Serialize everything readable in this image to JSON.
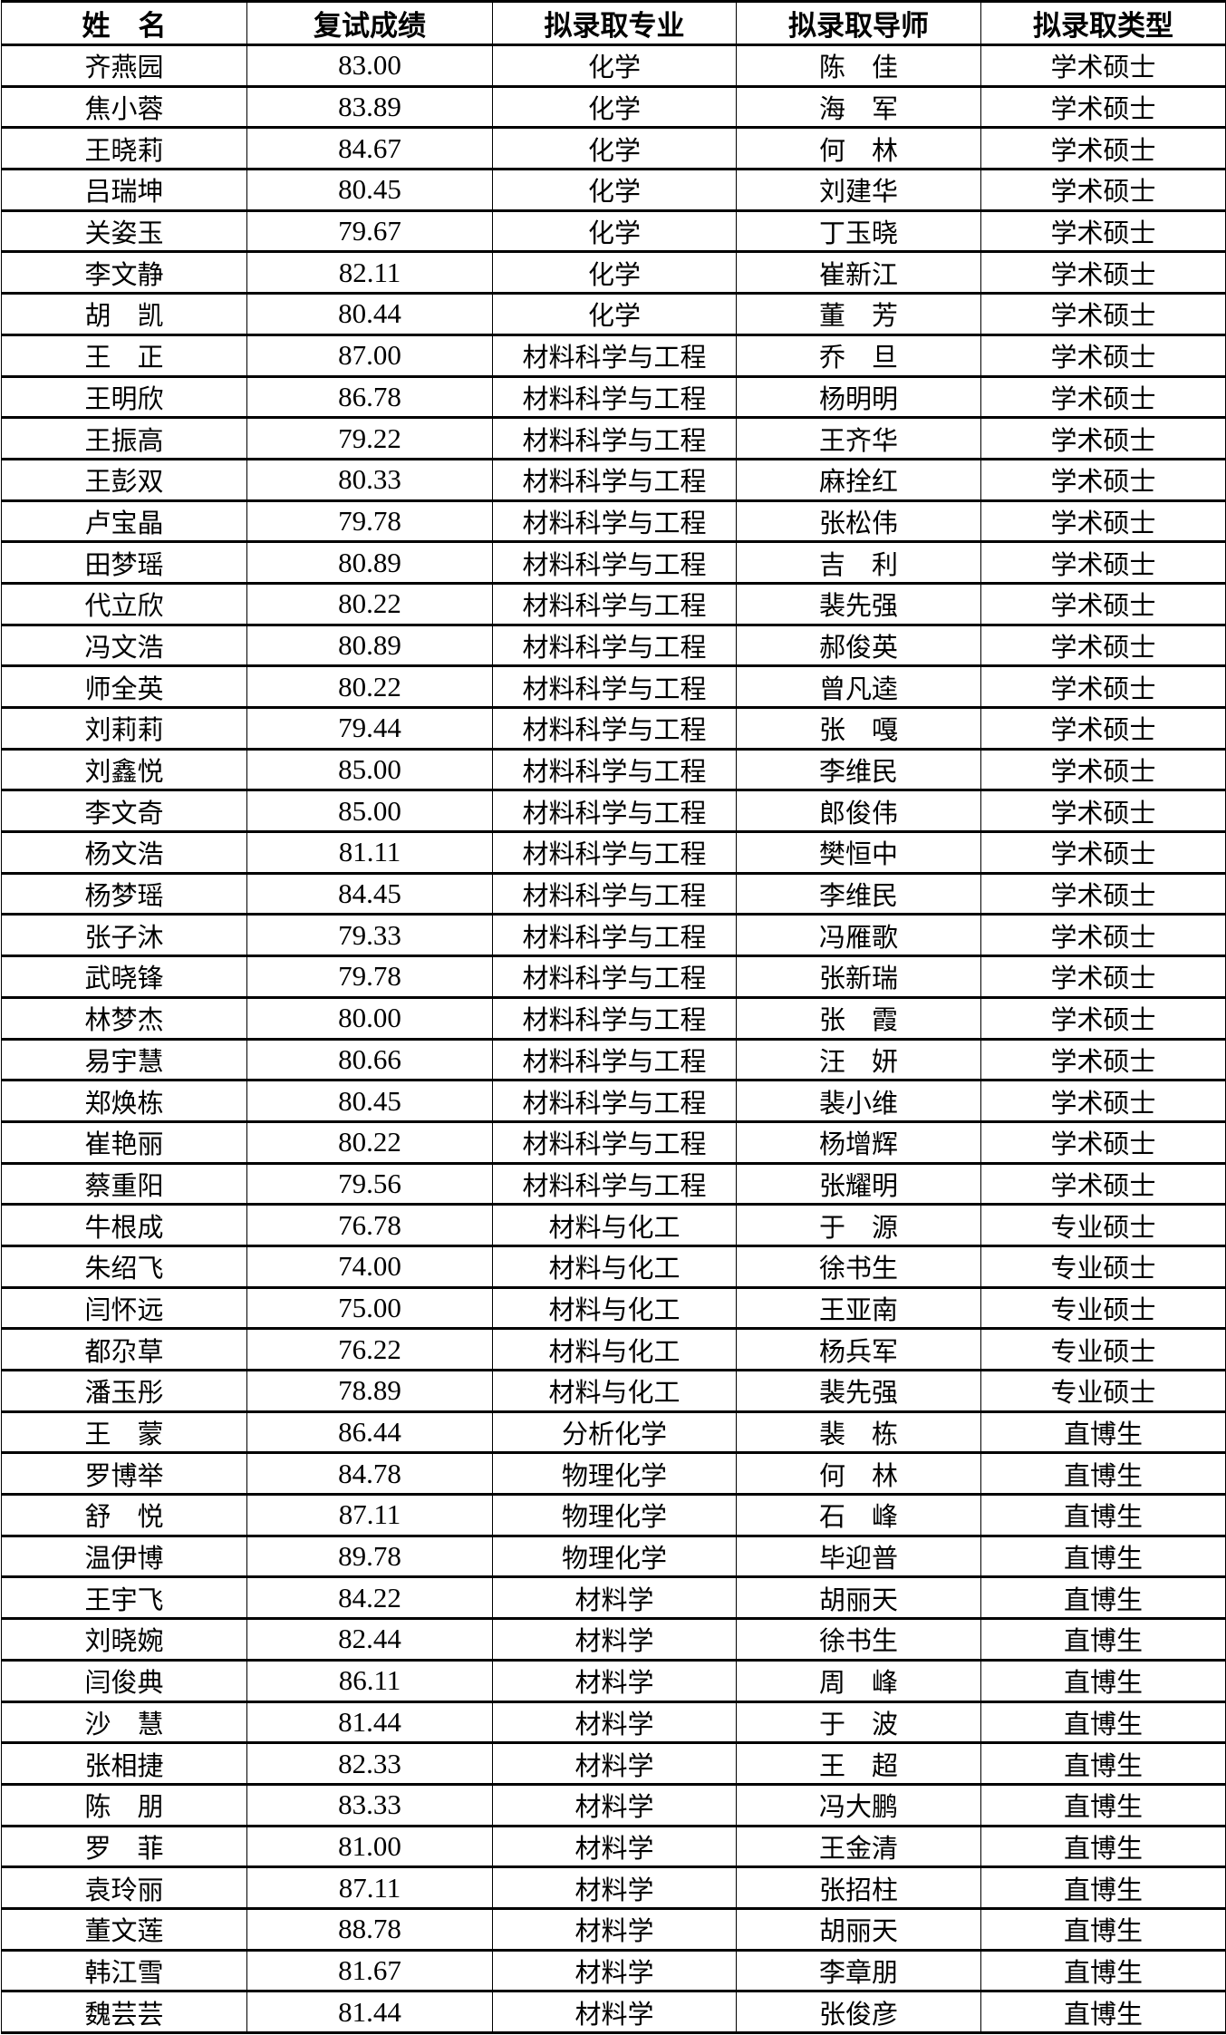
{
  "headers": [
    "姓　名",
    "复试成绩",
    "拟录取专业",
    "拟录取导师",
    "拟录取类型"
  ],
  "rows": [
    [
      "齐燕园",
      "83.00",
      "化学",
      "陈　佳",
      "学术硕士"
    ],
    [
      "焦小蓉",
      "83.89",
      "化学",
      "海　军",
      "学术硕士"
    ],
    [
      "王晓莉",
      "84.67",
      "化学",
      "何　林",
      "学术硕士"
    ],
    [
      "吕瑞坤",
      "80.45",
      "化学",
      "刘建华",
      "学术硕士"
    ],
    [
      "关姿玉",
      "79.67",
      "化学",
      "丁玉晓",
      "学术硕士"
    ],
    [
      "李文静",
      "82.11",
      "化学",
      "崔新江",
      "学术硕士"
    ],
    [
      "胡　凯",
      "80.44",
      "化学",
      "董　芳",
      "学术硕士"
    ],
    [
      "王　正",
      "87.00",
      "材料科学与工程",
      "乔　旦",
      "学术硕士"
    ],
    [
      "王明欣",
      "86.78",
      "材料科学与工程",
      "杨明明",
      "学术硕士"
    ],
    [
      "王振高",
      "79.22",
      "材料科学与工程",
      "王齐华",
      "学术硕士"
    ],
    [
      "王彭双",
      "80.33",
      "材料科学与工程",
      "麻拴红",
      "学术硕士"
    ],
    [
      "卢宝晶",
      "79.78",
      "材料科学与工程",
      "张松伟",
      "学术硕士"
    ],
    [
      "田梦瑶",
      "80.89",
      "材料科学与工程",
      "吉　利",
      "学术硕士"
    ],
    [
      "代立欣",
      "80.22",
      "材料科学与工程",
      "裴先强",
      "学术硕士"
    ],
    [
      "冯文浩",
      "80.89",
      "材料科学与工程",
      "郝俊英",
      "学术硕士"
    ],
    [
      "师全英",
      "80.22",
      "材料科学与工程",
      "曾凡逵",
      "学术硕士"
    ],
    [
      "刘莉莉",
      "79.44",
      "材料科学与工程",
      "张　嘎",
      "学术硕士"
    ],
    [
      "刘鑫悦",
      "85.00",
      "材料科学与工程",
      "李维民",
      "学术硕士"
    ],
    [
      "李文奇",
      "85.00",
      "材料科学与工程",
      "郎俊伟",
      "学术硕士"
    ],
    [
      "杨文浩",
      "81.11",
      "材料科学与工程",
      "樊恒中",
      "学术硕士"
    ],
    [
      "杨梦瑶",
      "84.45",
      "材料科学与工程",
      "李维民",
      "学术硕士"
    ],
    [
      "张子沐",
      "79.33",
      "材料科学与工程",
      "冯雁歌",
      "学术硕士"
    ],
    [
      "武晓锋",
      "79.78",
      "材料科学与工程",
      "张新瑞",
      "学术硕士"
    ],
    [
      "林梦杰",
      "80.00",
      "材料科学与工程",
      "张　霞",
      "学术硕士"
    ],
    [
      "易宇慧",
      "80.66",
      "材料科学与工程",
      "汪　妍",
      "学术硕士"
    ],
    [
      "郑焕栋",
      "80.45",
      "材料科学与工程",
      "裴小维",
      "学术硕士"
    ],
    [
      "崔艳丽",
      "80.22",
      "材料科学与工程",
      "杨增辉",
      "学术硕士"
    ],
    [
      "蔡重阳",
      "79.56",
      "材料科学与工程",
      "张耀明",
      "学术硕士"
    ],
    [
      "牛根成",
      "76.78",
      "材料与化工",
      "于　源",
      "专业硕士"
    ],
    [
      "朱绍飞",
      "74.00",
      "材料与化工",
      "徐书生",
      "专业硕士"
    ],
    [
      "闫怀远",
      "75.00",
      "材料与化工",
      "王亚南",
      "专业硕士"
    ],
    [
      "都尕草",
      "76.22",
      "材料与化工",
      "杨兵军",
      "专业硕士"
    ],
    [
      "潘玉彤",
      "78.89",
      "材料与化工",
      "裴先强",
      "专业硕士"
    ],
    [
      "王　蒙",
      "86.44",
      "分析化学",
      "裴　栋",
      "直博生"
    ],
    [
      "罗博举",
      "84.78",
      "物理化学",
      "何　林",
      "直博生"
    ],
    [
      "舒　悦",
      "87.11",
      "物理化学",
      "石　峰",
      "直博生"
    ],
    [
      "温伊博",
      "89.78",
      "物理化学",
      "毕迎普",
      "直博生"
    ],
    [
      "王宇飞",
      "84.22",
      "材料学",
      "胡丽天",
      "直博生"
    ],
    [
      "刘晓婉",
      "82.44",
      "材料学",
      "徐书生",
      "直博生"
    ],
    [
      "闫俊典",
      "86.11",
      "材料学",
      "周　峰",
      "直博生"
    ],
    [
      "沙　慧",
      "81.44",
      "材料学",
      "于　波",
      "直博生"
    ],
    [
      "张相捷",
      "82.33",
      "材料学",
      "王　超",
      "直博生"
    ],
    [
      "陈　朋",
      "83.33",
      "材料学",
      "冯大鹏",
      "直博生"
    ],
    [
      "罗　菲",
      "81.00",
      "材料学",
      "王金清",
      "直博生"
    ],
    [
      "袁玲丽",
      "87.11",
      "材料学",
      "张招柱",
      "直博生"
    ],
    [
      "董文莲",
      "88.78",
      "材料学",
      "胡丽天",
      "直博生"
    ],
    [
      "韩江雪",
      "81.67",
      "材料学",
      "李章朋",
      "直博生"
    ],
    [
      "魏芸芸",
      "81.44",
      "材料学",
      "张俊彦",
      "直博生"
    ]
  ]
}
